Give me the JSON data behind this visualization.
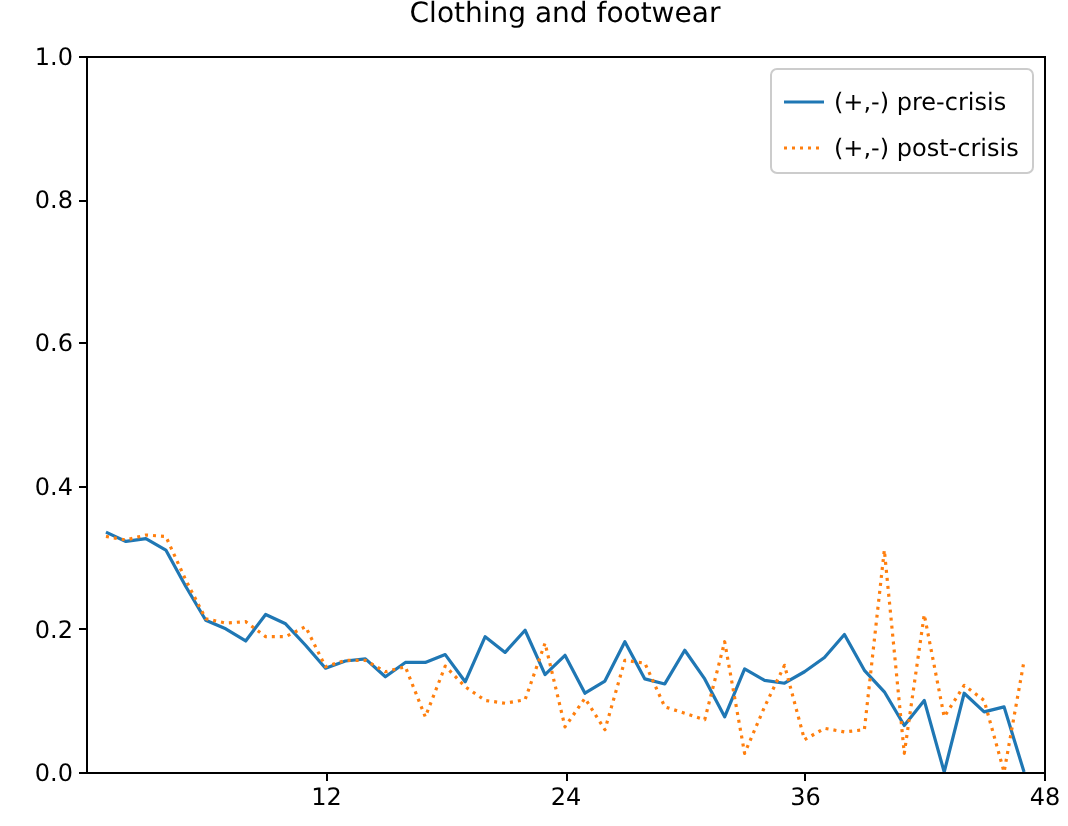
{
  "chart_data": {
    "type": "line",
    "title": "Clothing and footwear",
    "x": [
      1,
      2,
      3,
      4,
      5,
      6,
      7,
      8,
      9,
      10,
      11,
      12,
      13,
      14,
      15,
      16,
      17,
      18,
      19,
      20,
      21,
      22,
      23,
      24,
      25,
      26,
      27,
      28,
      29,
      30,
      31,
      32,
      33,
      34,
      35,
      36,
      37,
      38,
      39,
      40,
      41,
      42,
      43,
      44,
      45,
      46,
      47
    ],
    "series": [
      {
        "name": "(+,-) pre-crisis",
        "color": "#1f77b4",
        "line_style": "solid",
        "values": [
          0.335,
          0.322,
          0.326,
          0.31,
          0.259,
          0.212,
          0.2,
          0.183,
          0.22,
          0.207,
          0.177,
          0.145,
          0.155,
          0.158,
          0.133,
          0.153,
          0.153,
          0.164,
          0.126,
          0.189,
          0.167,
          0.198,
          0.136,
          0.163,
          0.11,
          0.127,
          0.182,
          0.13,
          0.123,
          0.17,
          0.13,
          0.077,
          0.144,
          0.128,
          0.124,
          0.14,
          0.16,
          0.192,
          0.142,
          0.112,
          0.065,
          0.1,
          0.0,
          0.11,
          0.084,
          0.091,
          0.0
        ]
      },
      {
        "name": "(+,-) post-crisis",
        "color": "#ff7f0e",
        "line_style": "dotted",
        "values": [
          0.329,
          0.324,
          0.331,
          0.329,
          0.268,
          0.214,
          0.208,
          0.21,
          0.189,
          0.189,
          0.203,
          0.147,
          0.156,
          0.156,
          0.14,
          0.147,
          0.077,
          0.148,
          0.119,
          0.1,
          0.096,
          0.101,
          0.18,
          0.063,
          0.103,
          0.059,
          0.156,
          0.152,
          0.091,
          0.082,
          0.073,
          0.182,
          0.026,
          0.091,
          0.149,
          0.045,
          0.061,
          0.056,
          0.059,
          0.31,
          0.026,
          0.22,
          0.077,
          0.121,
          0.1,
          0.0,
          0.155
        ]
      }
    ],
    "xlim": [
      0,
      48
    ],
    "xticks": [
      12,
      24,
      36,
      48
    ],
    "ylim": [
      0,
      1
    ],
    "yticks": [
      {
        "value": 0,
        "label": "0.0"
      },
      0.2,
      0.4,
      0.6,
      0.8,
      {
        "value": 1,
        "label": "1.0"
      }
    ],
    "legend": "top right",
    "grid": false
  }
}
